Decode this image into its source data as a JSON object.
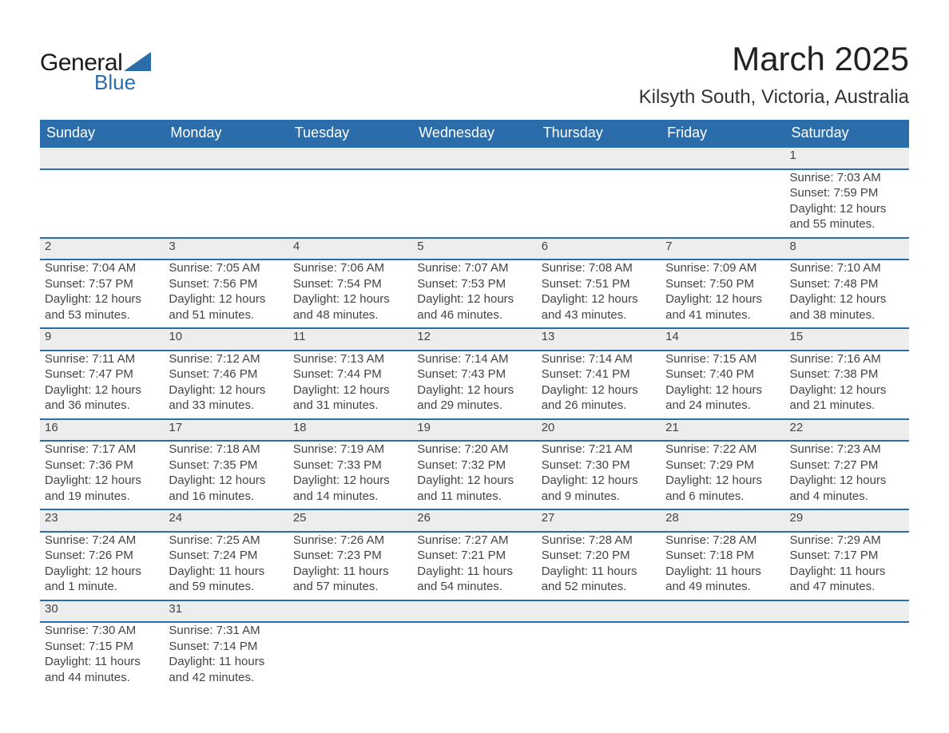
{
  "brand": {
    "word1": "General",
    "word2": "Blue",
    "accent_color": "#2A6DAA"
  },
  "header": {
    "month_title": "March 2025",
    "location": "Kilsyth South, Victoria, Australia"
  },
  "colors": {
    "header_bg": "#2A6DAA",
    "header_text": "#ffffff",
    "daynum_bg": "#ededed",
    "row_border": "#2A6DAA",
    "text": "#444444",
    "bg": "#ffffff"
  },
  "weekdays": [
    "Sunday",
    "Monday",
    "Tuesday",
    "Wednesday",
    "Thursday",
    "Friday",
    "Saturday"
  ],
  "layout": {
    "columns": 7,
    "first_day_col": 6,
    "days_in_month": 31
  },
  "days": {
    "1": {
      "sunrise": "Sunrise: 7:03 AM",
      "sunset": "Sunset: 7:59 PM",
      "daylight": "Daylight: 12 hours and 55 minutes."
    },
    "2": {
      "sunrise": "Sunrise: 7:04 AM",
      "sunset": "Sunset: 7:57 PM",
      "daylight": "Daylight: 12 hours and 53 minutes."
    },
    "3": {
      "sunrise": "Sunrise: 7:05 AM",
      "sunset": "Sunset: 7:56 PM",
      "daylight": "Daylight: 12 hours and 51 minutes."
    },
    "4": {
      "sunrise": "Sunrise: 7:06 AM",
      "sunset": "Sunset: 7:54 PM",
      "daylight": "Daylight: 12 hours and 48 minutes."
    },
    "5": {
      "sunrise": "Sunrise: 7:07 AM",
      "sunset": "Sunset: 7:53 PM",
      "daylight": "Daylight: 12 hours and 46 minutes."
    },
    "6": {
      "sunrise": "Sunrise: 7:08 AM",
      "sunset": "Sunset: 7:51 PM",
      "daylight": "Daylight: 12 hours and 43 minutes."
    },
    "7": {
      "sunrise": "Sunrise: 7:09 AM",
      "sunset": "Sunset: 7:50 PM",
      "daylight": "Daylight: 12 hours and 41 minutes."
    },
    "8": {
      "sunrise": "Sunrise: 7:10 AM",
      "sunset": "Sunset: 7:48 PM",
      "daylight": "Daylight: 12 hours and 38 minutes."
    },
    "9": {
      "sunrise": "Sunrise: 7:11 AM",
      "sunset": "Sunset: 7:47 PM",
      "daylight": "Daylight: 12 hours and 36 minutes."
    },
    "10": {
      "sunrise": "Sunrise: 7:12 AM",
      "sunset": "Sunset: 7:46 PM",
      "daylight": "Daylight: 12 hours and 33 minutes."
    },
    "11": {
      "sunrise": "Sunrise: 7:13 AM",
      "sunset": "Sunset: 7:44 PM",
      "daylight": "Daylight: 12 hours and 31 minutes."
    },
    "12": {
      "sunrise": "Sunrise: 7:14 AM",
      "sunset": "Sunset: 7:43 PM",
      "daylight": "Daylight: 12 hours and 29 minutes."
    },
    "13": {
      "sunrise": "Sunrise: 7:14 AM",
      "sunset": "Sunset: 7:41 PM",
      "daylight": "Daylight: 12 hours and 26 minutes."
    },
    "14": {
      "sunrise": "Sunrise: 7:15 AM",
      "sunset": "Sunset: 7:40 PM",
      "daylight": "Daylight: 12 hours and 24 minutes."
    },
    "15": {
      "sunrise": "Sunrise: 7:16 AM",
      "sunset": "Sunset: 7:38 PM",
      "daylight": "Daylight: 12 hours and 21 minutes."
    },
    "16": {
      "sunrise": "Sunrise: 7:17 AM",
      "sunset": "Sunset: 7:36 PM",
      "daylight": "Daylight: 12 hours and 19 minutes."
    },
    "17": {
      "sunrise": "Sunrise: 7:18 AM",
      "sunset": "Sunset: 7:35 PM",
      "daylight": "Daylight: 12 hours and 16 minutes."
    },
    "18": {
      "sunrise": "Sunrise: 7:19 AM",
      "sunset": "Sunset: 7:33 PM",
      "daylight": "Daylight: 12 hours and 14 minutes."
    },
    "19": {
      "sunrise": "Sunrise: 7:20 AM",
      "sunset": "Sunset: 7:32 PM",
      "daylight": "Daylight: 12 hours and 11 minutes."
    },
    "20": {
      "sunrise": "Sunrise: 7:21 AM",
      "sunset": "Sunset: 7:30 PM",
      "daylight": "Daylight: 12 hours and 9 minutes."
    },
    "21": {
      "sunrise": "Sunrise: 7:22 AM",
      "sunset": "Sunset: 7:29 PM",
      "daylight": "Daylight: 12 hours and 6 minutes."
    },
    "22": {
      "sunrise": "Sunrise: 7:23 AM",
      "sunset": "Sunset: 7:27 PM",
      "daylight": "Daylight: 12 hours and 4 minutes."
    },
    "23": {
      "sunrise": "Sunrise: 7:24 AM",
      "sunset": "Sunset: 7:26 PM",
      "daylight": "Daylight: 12 hours and 1 minute."
    },
    "24": {
      "sunrise": "Sunrise: 7:25 AM",
      "sunset": "Sunset: 7:24 PM",
      "daylight": "Daylight: 11 hours and 59 minutes."
    },
    "25": {
      "sunrise": "Sunrise: 7:26 AM",
      "sunset": "Sunset: 7:23 PM",
      "daylight": "Daylight: 11 hours and 57 minutes."
    },
    "26": {
      "sunrise": "Sunrise: 7:27 AM",
      "sunset": "Sunset: 7:21 PM",
      "daylight": "Daylight: 11 hours and 54 minutes."
    },
    "27": {
      "sunrise": "Sunrise: 7:28 AM",
      "sunset": "Sunset: 7:20 PM",
      "daylight": "Daylight: 11 hours and 52 minutes."
    },
    "28": {
      "sunrise": "Sunrise: 7:28 AM",
      "sunset": "Sunset: 7:18 PM",
      "daylight": "Daylight: 11 hours and 49 minutes."
    },
    "29": {
      "sunrise": "Sunrise: 7:29 AM",
      "sunset": "Sunset: 7:17 PM",
      "daylight": "Daylight: 11 hours and 47 minutes."
    },
    "30": {
      "sunrise": "Sunrise: 7:30 AM",
      "sunset": "Sunset: 7:15 PM",
      "daylight": "Daylight: 11 hours and 44 minutes."
    },
    "31": {
      "sunrise": "Sunrise: 7:31 AM",
      "sunset": "Sunset: 7:14 PM",
      "daylight": "Daylight: 11 hours and 42 minutes."
    }
  }
}
